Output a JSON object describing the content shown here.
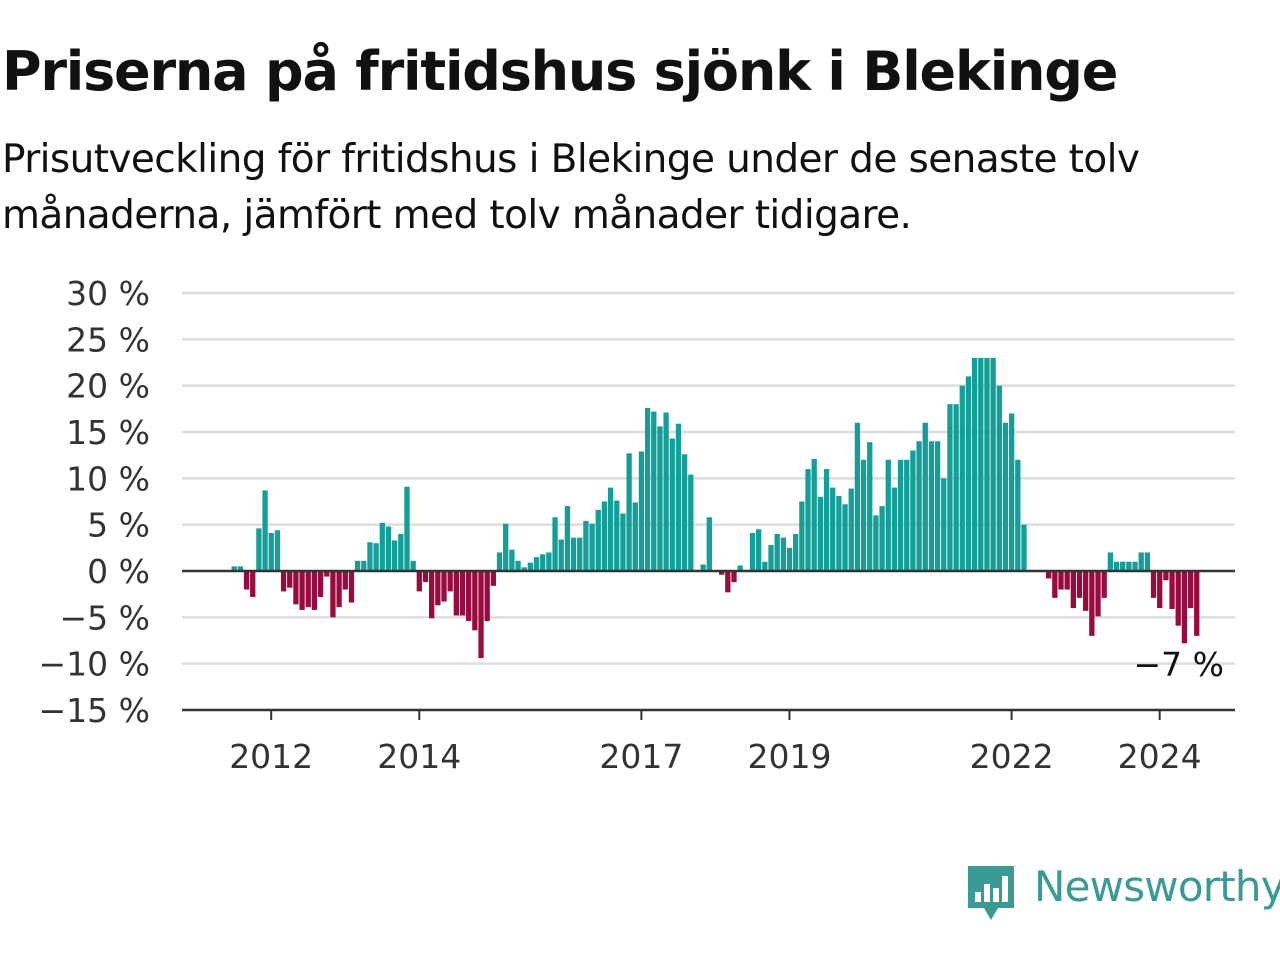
{
  "title": "Priserna på fritidshus sjönk i Blekinge",
  "subtitle": "Prisutveckling för fritidshus i Blekinge under de senaste tolv månaderna, jämfört med tolv månader tidigare.",
  "logo": {
    "text": "Newsworthy",
    "icon": "newsworthy-bar-chart-icon"
  },
  "colors": {
    "positive": "#139e98",
    "negative": "#990b3e",
    "grid": "#dddddd",
    "axis": "#333333",
    "logo": "#3a9b94"
  },
  "chart_data": {
    "type": "bar",
    "title": "Priserna på fritidshus sjönk i Blekinge",
    "subtitle": "Prisutveckling för fritidshus i Blekinge under de senaste tolv månaderna, jämfört med tolv månader tidigare.",
    "xlabel": "",
    "ylabel": "",
    "ylim": [
      -15,
      30
    ],
    "grid": true,
    "y_ticks": [
      {
        "value": 30,
        "label": "30 %"
      },
      {
        "value": 25,
        "label": "25 %"
      },
      {
        "value": 20,
        "label": "20 %"
      },
      {
        "value": 15,
        "label": "15 %"
      },
      {
        "value": 10,
        "label": "10 %"
      },
      {
        "value": 5,
        "label": "5 %"
      },
      {
        "value": 0,
        "label": "0 %"
      },
      {
        "value": -5,
        "label": "−5 %"
      },
      {
        "value": -10,
        "label": "−10 %"
      },
      {
        "value": -15,
        "label": "−15 %"
      }
    ],
    "x_ticks": [
      {
        "date": "2012-01",
        "label": "2012"
      },
      {
        "date": "2014-01",
        "label": "2014"
      },
      {
        "date": "2017-01",
        "label": "2017"
      },
      {
        "date": "2019-01",
        "label": "2019"
      },
      {
        "date": "2022-01",
        "label": "2022"
      },
      {
        "date": "2024-01",
        "label": "2024"
      }
    ],
    "start": "2011-06",
    "frequency": "monthly",
    "values": [
      null,
      0.5,
      0.5,
      -2,
      -2.8,
      4.6,
      8.7,
      4.1,
      4.4,
      -2.2,
      -1.8,
      -3.6,
      -4.2,
      -3.9,
      -4.2,
      -2.8,
      -0.6,
      -5,
      -3.9,
      -2,
      -3.4,
      1.1,
      1.1,
      3.1,
      3,
      5.2,
      4.8,
      3.3,
      4,
      9.1,
      1.1,
      -2.2,
      -1.2,
      -5.1,
      -3.7,
      -3.3,
      -2.2,
      -4.8,
      -4.8,
      -5.4,
      -6.4,
      -9.4,
      -5.4,
      -1.6,
      2,
      5.1,
      2.3,
      1.1,
      0.4,
      0.9,
      1.5,
      1.8,
      2,
      5.8,
      3.4,
      7,
      3.6,
      3.6,
      5.4,
      5.1,
      6.6,
      7.5,
      9,
      7.6,
      6.2,
      12.7,
      7.4,
      12.9,
      17.6,
      17.2,
      15.6,
      17.1,
      14.3,
      15.9,
      12.6,
      10.4,
      null,
      0.7,
      5.8,
      null,
      -0.4,
      -2.3,
      -1.2,
      0.6,
      null,
      4.1,
      4.5,
      1,
      2.8,
      4,
      3.6,
      2.5,
      4,
      7.5,
      11,
      12.1,
      8,
      11,
      9,
      8.1,
      7.2,
      8.9,
      16,
      12,
      13.9,
      6,
      7,
      12,
      9,
      12,
      12,
      13,
      14,
      16,
      14,
      14,
      10,
      18,
      18,
      20,
      21,
      23,
      23,
      23,
      23,
      20,
      16,
      17,
      12,
      5,
      null,
      null,
      null,
      -0.8,
      -2.9,
      -2,
      -2,
      -4,
      -2.9,
      -4.3,
      -7,
      -4.9,
      -2.9,
      2,
      1,
      1,
      1,
      1,
      2,
      2,
      -2.9,
      -4,
      -1,
      -4.1,
      -5.9,
      -7.8,
      -4,
      -7
    ],
    "annotations": [
      {
        "text": "−7 %",
        "target": "last"
      }
    ]
  }
}
